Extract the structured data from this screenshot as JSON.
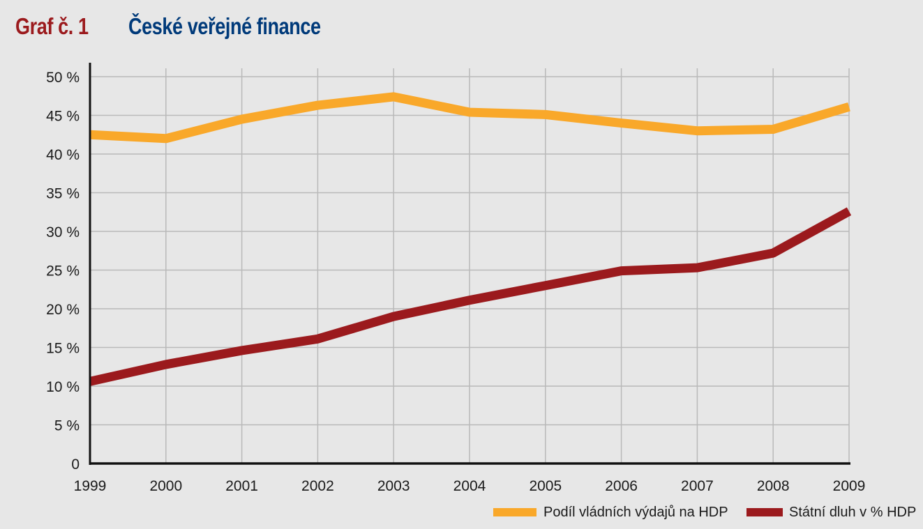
{
  "header": {
    "graf_label": "Graf č. 1",
    "title": "České veřejné finance"
  },
  "chart_data": {
    "type": "line",
    "title": "České veřejné finance",
    "x": [
      "1999",
      "2000",
      "2001",
      "2002",
      "2003",
      "2004",
      "2005",
      "2006",
      "2007",
      "2008",
      "2009"
    ],
    "y_ticks": [
      "0",
      "5 %",
      "10 %",
      "15 %",
      "20 %",
      "25 %",
      "30 %",
      "35 %",
      "40 %",
      "45 %",
      "50 %"
    ],
    "ylim": [
      0,
      50
    ],
    "grid": "vertical",
    "legend_position": "bottom-right",
    "series": [
      {
        "name": "Podíl vládních výdajů na HDP",
        "color": "#f9a82a",
        "values": [
          42.5,
          42.0,
          44.5,
          46.3,
          47.4,
          45.4,
          45.1,
          44.0,
          43.0,
          43.2,
          46.1
        ]
      },
      {
        "name": "Státní dluh v % HDP",
        "color": "#9b1a1d",
        "values": [
          10.6,
          12.8,
          14.6,
          16.1,
          19.0,
          21.1,
          23.0,
          24.9,
          25.3,
          27.2,
          32.6
        ]
      }
    ]
  }
}
